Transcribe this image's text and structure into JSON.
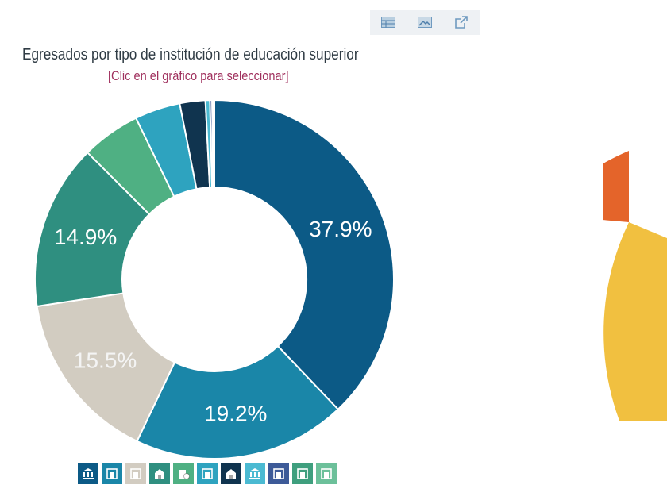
{
  "toolbar": {
    "buttons": [
      {
        "icon": "table-icon",
        "label": "Ver tabla"
      },
      {
        "icon": "image-icon",
        "label": "Descargar imagen"
      },
      {
        "icon": "external-link-icon",
        "label": "Abrir en nueva ventana"
      }
    ]
  },
  "chart_data": {
    "type": "pie",
    "title": "Egresados por tipo de institución de educación superior",
    "subtitle": "[Clic en el gráfico para seleccionar]",
    "donut": true,
    "values": [
      37.9,
      19.2,
      15.5,
      14.9,
      5.3,
      4.1,
      2.3,
      0.4,
      0.2,
      0.1,
      0.1
    ],
    "data_labels": [
      "37.9%",
      "19.2%",
      "15.5%",
      "14.9%",
      "",
      "",
      "",
      "",
      "",
      "",
      ""
    ],
    "colors": [
      "#0c5a86",
      "#1a86a8",
      "#d2ccc1",
      "#2f8f80",
      "#4fb083",
      "#2ea3bf",
      "#10344f",
      "#4bbad2",
      "#3d5a98",
      "#3f9f7e",
      "#6cc09a"
    ],
    "label_colors": [
      "#ffffff",
      "#ffffff",
      "#f4f4f4",
      "#ffffff"
    ],
    "legend_icons": [
      "institution-icon",
      "building-icon",
      "building-icon",
      "school-icon",
      "money-building-icon",
      "building-icon",
      "school-icon",
      "institution-icon",
      "building-icon",
      "building-icon",
      "building-icon"
    ],
    "legend_placement": "bottom"
  },
  "right_chart": {
    "colors": [
      "#e4642a",
      "#f1c040"
    ]
  }
}
